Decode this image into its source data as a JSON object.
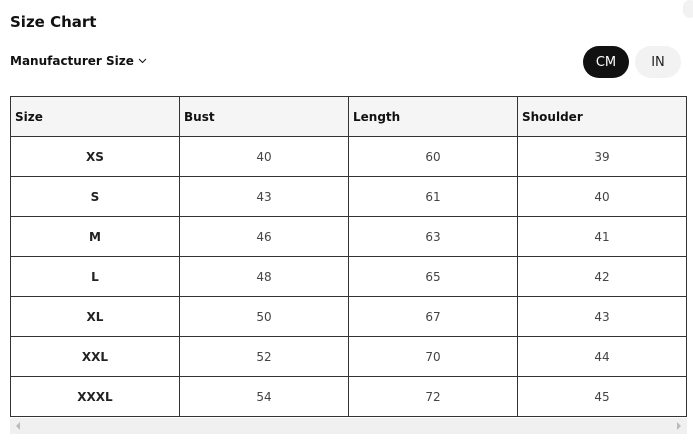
{
  "title": "Size Chart",
  "size_selector": {
    "label": "Manufacturer Size",
    "icon": "chevron-down-icon"
  },
  "units": {
    "cm": "CM",
    "in": "IN",
    "selected": "CM"
  },
  "table": {
    "headers": [
      "Size",
      "Bust",
      "Length",
      "Shoulder"
    ],
    "rows": [
      [
        "XS",
        "40",
        "60",
        "39"
      ],
      [
        "S",
        "43",
        "61",
        "40"
      ],
      [
        "M",
        "46",
        "63",
        "41"
      ],
      [
        "L",
        "48",
        "65",
        "42"
      ],
      [
        "XL",
        "50",
        "67",
        "43"
      ],
      [
        "XXL",
        "52",
        "70",
        "44"
      ],
      [
        "XXXL",
        "54",
        "72",
        "45"
      ]
    ]
  }
}
